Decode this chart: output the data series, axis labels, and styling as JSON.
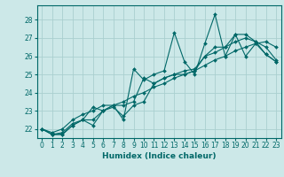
{
  "xlabel": "Humidex (Indice chaleur)",
  "bg_color": "#cce8e8",
  "grid_color": "#aacfcf",
  "line_color": "#006868",
  "spine_color": "#006868",
  "xlim": [
    -0.5,
    23.5
  ],
  "ylim": [
    21.5,
    28.8
  ],
  "yticks": [
    22,
    23,
    24,
    25,
    26,
    27,
    28
  ],
  "xticks": [
    0,
    1,
    2,
    3,
    4,
    5,
    6,
    7,
    8,
    9,
    10,
    11,
    12,
    13,
    14,
    15,
    16,
    17,
    18,
    19,
    20,
    21,
    22,
    23
  ],
  "series": [
    [
      22.0,
      21.7,
      21.7,
      22.2,
      22.5,
      22.2,
      23.0,
      23.3,
      22.5,
      25.3,
      24.7,
      25.0,
      25.2,
      27.3,
      25.7,
      25.0,
      26.7,
      28.3,
      26.0,
      27.2,
      26.0,
      26.7,
      26.1,
      25.7
    ],
    [
      22.0,
      21.7,
      21.7,
      22.2,
      22.5,
      23.2,
      23.0,
      23.3,
      23.3,
      23.5,
      24.8,
      24.5,
      24.8,
      25.0,
      25.0,
      25.2,
      26.0,
      26.5,
      26.5,
      27.2,
      27.2,
      26.8,
      26.1,
      25.7
    ],
    [
      22.0,
      21.7,
      21.8,
      22.3,
      22.5,
      22.5,
      23.0,
      23.2,
      22.7,
      23.3,
      23.5,
      24.5,
      24.8,
      25.0,
      25.2,
      25.3,
      26.0,
      26.2,
      26.5,
      26.8,
      27.0,
      26.8,
      26.5,
      25.8
    ],
    [
      22.0,
      21.8,
      22.0,
      22.5,
      22.8,
      23.0,
      23.3,
      23.3,
      23.5,
      23.8,
      24.0,
      24.3,
      24.5,
      24.8,
      25.0,
      25.2,
      25.5,
      25.8,
      26.0,
      26.3,
      26.5,
      26.7,
      26.8,
      26.5
    ]
  ],
  "xlabel_fontsize": 6.5,
  "tick_fontsize": 5.5,
  "marker_size": 2.0,
  "linewidth": 0.8
}
